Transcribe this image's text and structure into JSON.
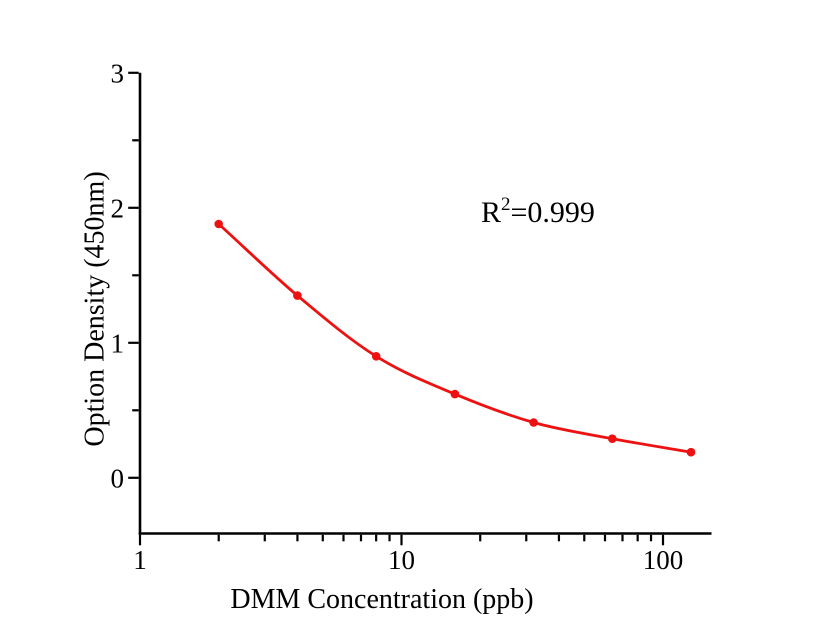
{
  "chart_data": {
    "type": "scatter",
    "title": "",
    "xlabel": "DMM Concentration（ppb）",
    "ylabel": "Option Density（450nm）",
    "x_scale": "log",
    "y_scale": "linear",
    "x": [
      2,
      4,
      8,
      16,
      32,
      64,
      128
    ],
    "y": [
      1.88,
      1.35,
      0.9,
      0.62,
      0.41,
      0.29,
      0.19
    ],
    "xlim": [
      1,
      150
    ],
    "ylim": [
      -0.41,
      3
    ],
    "x_major_ticks": [
      1,
      10,
      100
    ],
    "x_major_tick_labels": [
      "1",
      "10",
      "100"
    ],
    "x_minor_ticks": [
      2,
      3,
      4,
      5,
      6,
      7,
      8,
      9,
      20,
      30,
      40,
      50,
      60,
      70,
      80,
      90
    ],
    "y_major_ticks": [
      0,
      1,
      2,
      3
    ],
    "y_major_tick_labels": [
      "0",
      "1",
      "2",
      "3"
    ],
    "y_minor_ticks": [
      0.5,
      1.5,
      2.5
    ],
    "annotation": {
      "base": "R",
      "exponent": "2",
      "rest": "=0.999"
    },
    "line_color": "#ee1111",
    "marker_color": "#ee1111",
    "axis_color": "#000000",
    "background": "#ffffff",
    "grid": false,
    "legend": false,
    "curve_style": "smooth-fit-through-points",
    "marker_style": "filled-circle"
  }
}
